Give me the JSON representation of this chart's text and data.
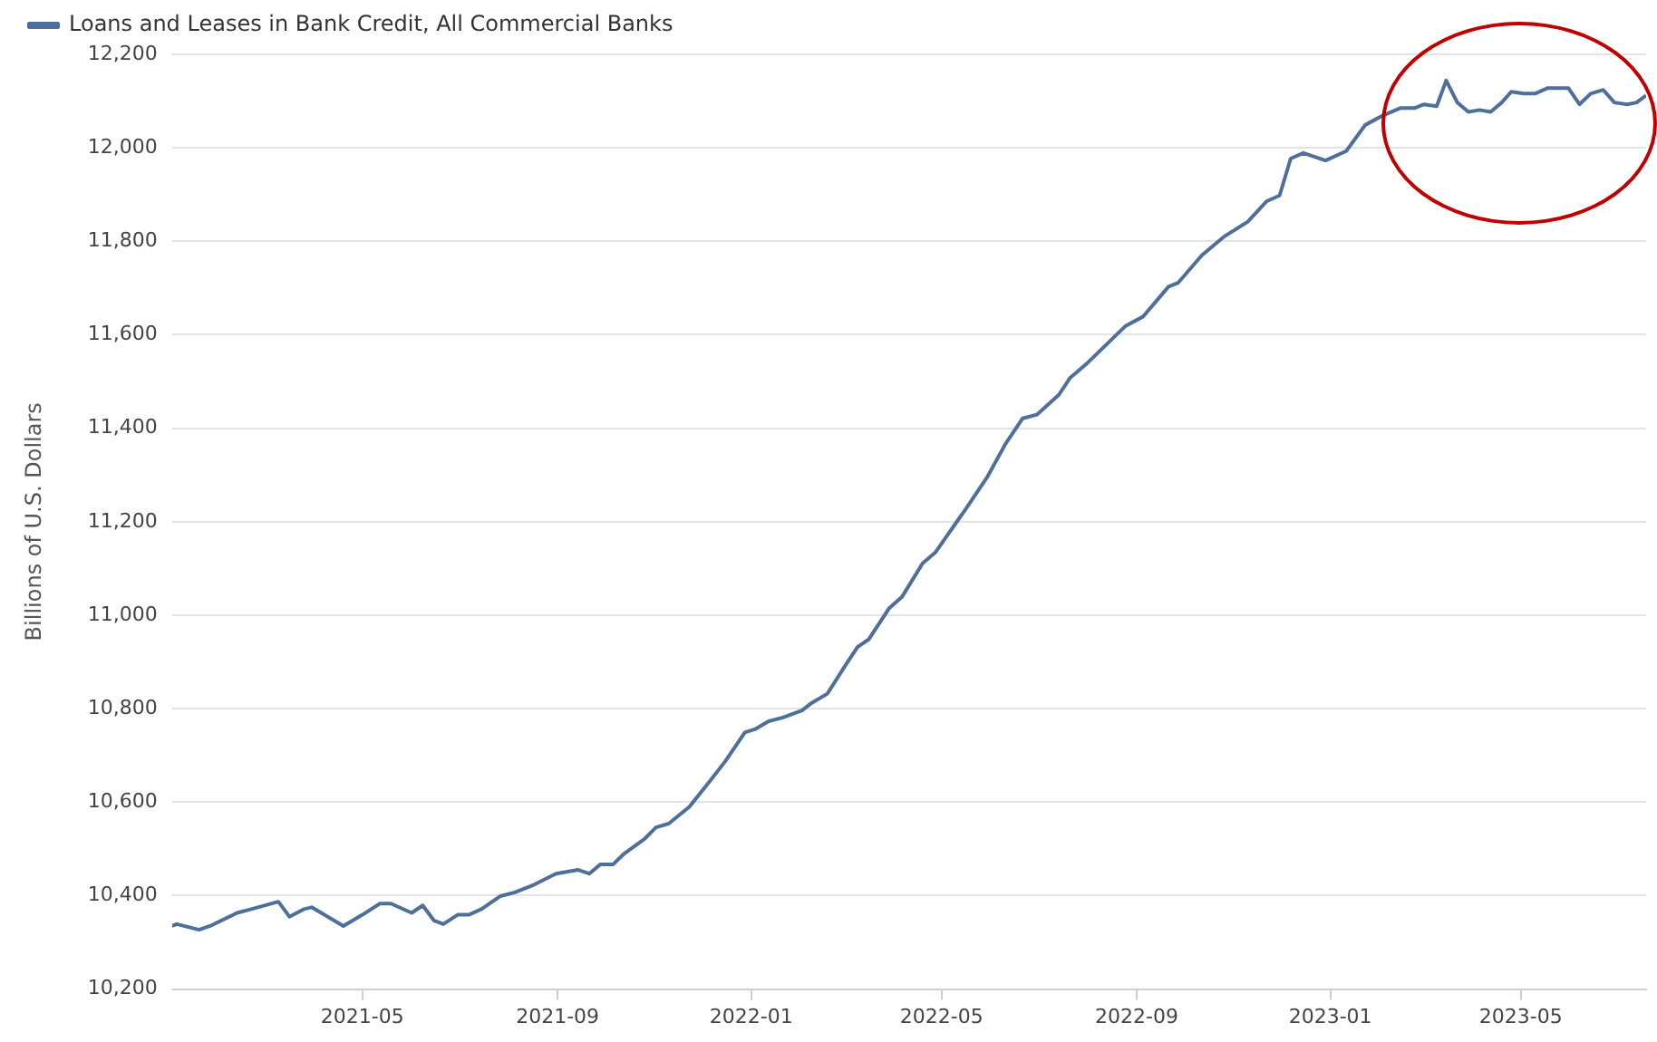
{
  "chart_data": {
    "type": "line",
    "ylabel": "Billions of U.S. Dollars",
    "legend": "top left",
    "grid": "y",
    "marker": "none",
    "line_style": "solid",
    "xlim": [
      "2021-01-01",
      "2023-07-19"
    ],
    "xticks": [
      "2021-05",
      "2021-09",
      "2022-01",
      "2022-05",
      "2022-09",
      "2023-01",
      "2023-05"
    ],
    "ylim": [
      10200,
      12200
    ],
    "yticks": [
      {
        "value": 10200,
        "label": "10,200"
      },
      {
        "value": 10400,
        "label": "10,400"
      },
      {
        "value": 10600,
        "label": "10,600"
      },
      {
        "value": 10800,
        "label": "10,800"
      },
      {
        "value": 11000,
        "label": "11,000"
      },
      {
        "value": 11200,
        "label": "11,200"
      },
      {
        "value": 11400,
        "label": "11,400"
      },
      {
        "value": 11600,
        "label": "11,600"
      },
      {
        "value": 11800,
        "label": "11,800"
      },
      {
        "value": 12000,
        "label": "12,000"
      },
      {
        "value": 12200,
        "label": "12,200"
      }
    ],
    "x": [
      "2021-01-01",
      "2021-01-04",
      "2021-01-18",
      "2021-01-25",
      "2021-02-11",
      "2021-02-20",
      "2021-03-09",
      "2021-03-16",
      "2021-03-25",
      "2021-03-30",
      "2021-04-19",
      "2021-05-01",
      "2021-05-12",
      "2021-05-19",
      "2021-06-01",
      "2021-06-08",
      "2021-06-15",
      "2021-06-21",
      "2021-06-30",
      "2021-07-07",
      "2021-07-15",
      "2021-07-27",
      "2021-08-05",
      "2021-08-17",
      "2021-08-31",
      "2021-09-14",
      "2021-09-21",
      "2021-09-28",
      "2021-10-06",
      "2021-10-13",
      "2021-10-26",
      "2021-11-02",
      "2021-11-10",
      "2021-11-23",
      "2021-12-06",
      "2021-12-16",
      "2021-12-28",
      "2022-01-04",
      "2022-01-12",
      "2022-01-21",
      "2022-02-02",
      "2022-02-08",
      "2022-02-18",
      "2022-03-02",
      "2022-03-09",
      "2022-03-16",
      "2022-03-29",
      "2022-04-06",
      "2022-04-19",
      "2022-04-27",
      "2022-05-11",
      "2022-05-16",
      "2022-05-30",
      "2022-06-10",
      "2022-06-21",
      "2022-06-30",
      "2022-07-14",
      "2022-07-21",
      "2022-08-01",
      "2022-08-25",
      "2022-09-05",
      "2022-09-21",
      "2022-09-27",
      "2022-10-12",
      "2022-10-26",
      "2022-11-10",
      "2022-11-22",
      "2022-11-30",
      "2022-12-07",
      "2022-12-15",
      "2022-12-29",
      "2023-01-11",
      "2023-01-23",
      "2023-02-03",
      "2023-02-14",
      "2023-02-23",
      "2023-03-01",
      "2023-03-09",
      "2023-03-15",
      "2023-03-22",
      "2023-03-29",
      "2023-04-05",
      "2023-04-12",
      "2023-04-19",
      "2023-04-25",
      "2023-05-03",
      "2023-05-10",
      "2023-05-18",
      "2023-05-31",
      "2023-06-07",
      "2023-06-14",
      "2023-06-22",
      "2023-06-29",
      "2023-07-07",
      "2023-07-13",
      "2023-07-19"
    ],
    "series": [
      {
        "name": "Loans and Leases in Bank Credit, All Commercial Banks",
        "color": "#4e6f99",
        "values": [
          10335,
          10339,
          10327,
          10335,
          10363,
          10371,
          10387,
          10355,
          10371,
          10375,
          10335,
          10359,
          10383,
          10383,
          10363,
          10379,
          10347,
          10339,
          10359,
          10359,
          10371,
          10399,
          10407,
          10423,
          10447,
          10455,
          10447,
          10467,
          10467,
          10490,
          10522,
          10546,
          10554,
          10590,
          10645,
          10689,
          10749,
          10757,
          10773,
          10781,
          10796,
          10812,
          10832,
          10896,
          10932,
          10948,
          11015,
          11039,
          11111,
          11134,
          11202,
          11226,
          11297,
          11365,
          11421,
          11429,
          11472,
          11508,
          11540,
          11619,
          11639,
          11703,
          11711,
          11770,
          11810,
          11842,
          11886,
          11898,
          11977,
          11989,
          11973,
          11993,
          12049,
          12069,
          12085,
          12085,
          12093,
          12089,
          12144,
          12097,
          12077,
          12081,
          12077,
          12097,
          12120,
          12116,
          12116,
          12128,
          12128,
          12093,
          12116,
          12124,
          12097,
          12093,
          12097,
          12112
        ]
      }
    ]
  }
}
